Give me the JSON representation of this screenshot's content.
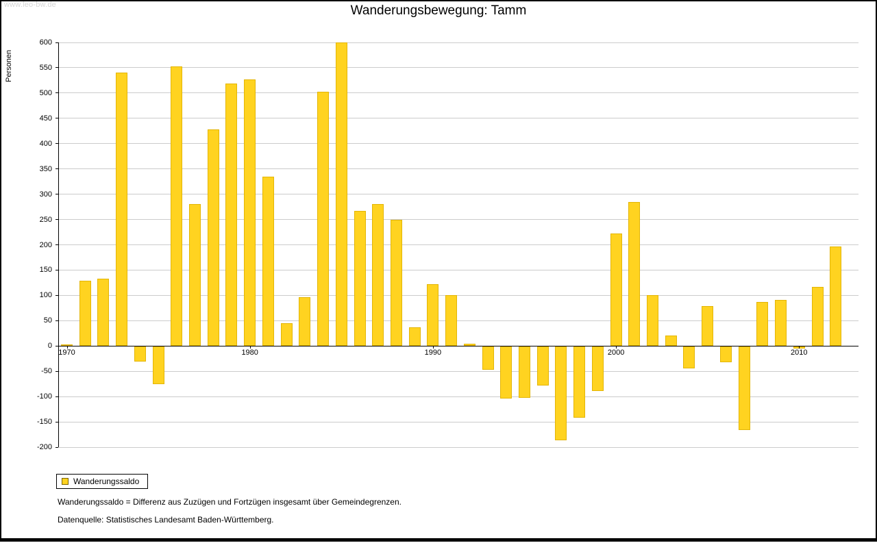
{
  "watermark": "www.leo-bw.de",
  "title": "Wanderungsbewegung: Tamm",
  "y_axis_title": "Personen",
  "legend": {
    "label": "Wanderungssaldo"
  },
  "footnotes": [
    "Wanderungssaldo = Differenz aus Zuzügen und Fortzügen insgesamt über Gemeindegrenzen.",
    "Datenquelle: Statistisches Landesamt Baden-Württemberg."
  ],
  "colors": {
    "bar": "#FFD320",
    "bar_border": "#E3B505",
    "grid": "#CBCBCB",
    "axis": "#000000",
    "watermark": "#D6D6D6"
  },
  "chart_data": {
    "type": "bar",
    "title": "Wanderungsbewegung: Tamm",
    "xlabel": "",
    "ylabel": "Personen",
    "ylim": [
      -200,
      600
    ],
    "ytick_step": 50,
    "xticks": [
      1970,
      1980,
      1990,
      2000,
      2010
    ],
    "grid": true,
    "legend_position": "bottom-left",
    "categories": [
      1970,
      1971,
      1972,
      1973,
      1974,
      1975,
      1976,
      1977,
      1978,
      1979,
      1980,
      1981,
      1982,
      1983,
      1984,
      1985,
      1986,
      1987,
      1988,
      1989,
      1990,
      1991,
      1992,
      1993,
      1994,
      1995,
      1996,
      1997,
      1998,
      1999,
      2000,
      2001,
      2002,
      2003,
      2004,
      2005,
      2006,
      2007,
      2008,
      2009,
      2010,
      2011,
      2012
    ],
    "series": [
      {
        "name": "Wanderungssaldo",
        "color": "#FFD320",
        "values": [
          3,
          129,
          133,
          540,
          -30,
          -75,
          553,
          280,
          428,
          519,
          527,
          335,
          45,
          96,
          503,
          600,
          267,
          280,
          250,
          37,
          122,
          101,
          5,
          -47,
          -103,
          -102,
          -77,
          -186,
          -141,
          -88,
          222,
          285,
          100,
          20,
          -43,
          79,
          -32,
          -165,
          87,
          91,
          -5,
          117,
          197
        ]
      }
    ]
  }
}
